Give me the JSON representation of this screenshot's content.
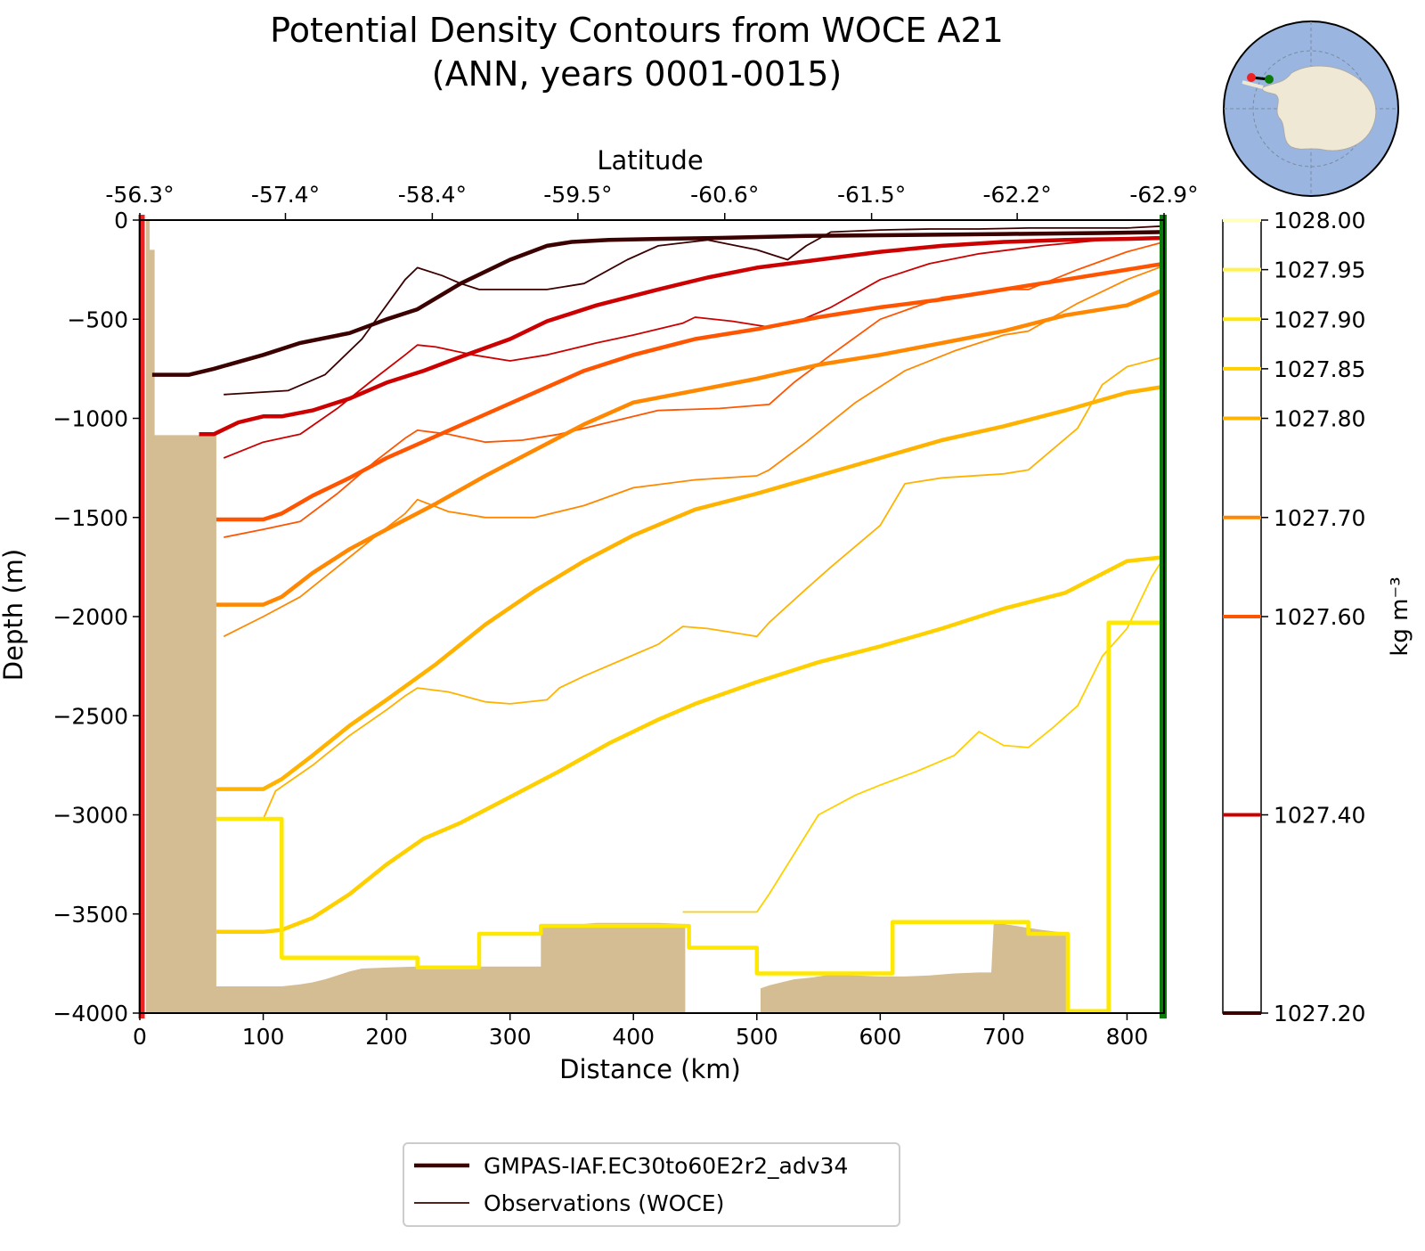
{
  "chart_data": {
    "type": "line",
    "title_line1": "Potential Density Contours from WOCE A21",
    "title_line2": "(ANN, years 0001-0015)",
    "xlabel": "Distance (km)",
    "ylabel": "Depth (m)",
    "top_axis_label": "Latitude",
    "xlim": [
      0,
      830
    ],
    "ylim": [
      -4000,
      0
    ],
    "x_ticks": [
      0,
      100,
      200,
      300,
      400,
      500,
      600,
      700,
      800
    ],
    "y_ticks": [
      0,
      -500,
      -1000,
      -1500,
      -2000,
      -2500,
      -3000,
      -3500,
      -4000
    ],
    "x_tick_labels": [
      "0",
      "100",
      "200",
      "300",
      "400",
      "500",
      "600",
      "700",
      "800"
    ],
    "y_tick_labels": [
      "0",
      "−500",
      "−1000",
      "−1500",
      "−2000",
      "−2500",
      "−3000",
      "−3500",
      "−4000"
    ],
    "top_ticks": [
      0,
      118,
      237,
      355,
      474,
      593,
      711,
      830
    ],
    "top_tick_labels": [
      "-56.3°",
      "-57.4°",
      "-58.4°",
      "-59.5°",
      "-60.6°",
      "-61.5°",
      "-62.2°",
      "-62.9°"
    ],
    "grid": false,
    "legend_position": "bottom-center",
    "legend": [
      {
        "label": "GMPAS-IAF.EC30to60E2r2_adv34",
        "style": "thick"
      },
      {
        "label": "Observations (WOCE)",
        "style": "thin"
      }
    ],
    "colorbar": {
      "label": "kg m⁻³",
      "range": [
        1027.2,
        1028.0
      ],
      "levels": [
        1027.2,
        1027.4,
        1027.6,
        1027.7,
        1027.8,
        1027.85,
        1027.9,
        1027.95,
        1028.0
      ],
      "tick_labels": [
        "1027.20",
        "1027.40",
        "1027.60",
        "1027.70",
        "1027.80",
        "1027.85",
        "1027.90",
        "1027.95",
        "1028.00"
      ],
      "colors": [
        "#3b0000",
        "#cc0000",
        "#ff5500",
        "#ff8800",
        "#ffb300",
        "#ffd000",
        "#ffe800",
        "#fff24d",
        "#ffffc0"
      ]
    },
    "colors": {
      "section_start": "#ee2222",
      "section_end": "#0a7a0a",
      "bathymetry": "#d4bc93"
    },
    "bathymetry": {
      "x": [
        5,
        8,
        8,
        12,
        12,
        62,
        62,
        100,
        115,
        130,
        140,
        150,
        160,
        170,
        180,
        200,
        225,
        240,
        260,
        300,
        325,
        325,
        360,
        370,
        420,
        440,
        442
      ],
      "depth": [
        0,
        0,
        -150,
        -150,
        -1085,
        -1085,
        -3865,
        -3865,
        -3865,
        -3855,
        -3845,
        -3830,
        -3810,
        -3790,
        -3775,
        -3770,
        -3765,
        -3765,
        -3765,
        -3765,
        -3765,
        -3550,
        -3550,
        -3545,
        -3545,
        -3550,
        -3550
      ]
    },
    "bathymetry2": {
      "x": [
        503,
        510,
        520,
        530,
        545,
        560,
        580,
        600,
        620,
        640,
        660,
        680,
        690,
        692,
        700,
        710,
        720,
        730,
        750,
        752
      ],
      "depth": [
        -3875,
        -3860,
        -3845,
        -3830,
        -3820,
        -3805,
        -3810,
        -3815,
        -3815,
        -3810,
        -3800,
        -3795,
        -3795,
        -3540,
        -3550,
        -3560,
        -3570,
        -3580,
        -3595,
        -3595
      ]
    },
    "series": [
      {
        "name": "",
        "level": 1027.2,
        "source": "model",
        "x": [
          10,
          40,
          60,
          100,
          130,
          170,
          200,
          225,
          260,
          300,
          330,
          350,
          380,
          420,
          470,
          540,
          620,
          700,
          780,
          830
        ],
        "y": [
          -780,
          -780,
          -750,
          -680,
          -620,
          -570,
          -500,
          -450,
          -320,
          -200,
          -130,
          -110,
          -100,
          -95,
          -90,
          -80,
          -75,
          -70,
          -65,
          -60
        ]
      },
      {
        "name": "",
        "level": 1027.2,
        "source": "observations",
        "x": [
          68,
          120,
          150,
          180,
          215,
          225,
          245,
          260,
          275,
          300,
          330,
          360,
          395,
          420,
          460,
          500,
          525,
          540,
          560,
          600,
          640,
          680,
          720,
          760,
          800,
          830
        ],
        "y": [
          -880,
          -860,
          -780,
          -600,
          -300,
          -240,
          -280,
          -320,
          -350,
          -350,
          -350,
          -320,
          -200,
          -130,
          -100,
          -150,
          -200,
          -130,
          -60,
          -50,
          -45,
          -45,
          -40,
          -40,
          -40,
          -30
        ]
      },
      {
        "name": "",
        "level": 1027.4,
        "source": "model",
        "x": [
          48,
          60,
          80,
          100,
          115,
          140,
          170,
          200,
          230,
          260,
          300,
          330,
          370,
          420,
          460,
          500,
          550,
          600,
          650,
          700,
          750,
          800,
          830
        ],
        "y": [
          -1080,
          -1080,
          -1020,
          -990,
          -990,
          -960,
          -900,
          -820,
          -760,
          -690,
          -600,
          -510,
          -430,
          -350,
          -290,
          -240,
          -200,
          -160,
          -130,
          -110,
          -100,
          -95,
          -90
        ]
      },
      {
        "name": "",
        "level": 1027.4,
        "source": "observations",
        "x": [
          68,
          100,
          130,
          160,
          190,
          215,
          225,
          240,
          270,
          300,
          330,
          370,
          400,
          440,
          450,
          480,
          510,
          530,
          560,
          600,
          640,
          680,
          730,
          780,
          830
        ],
        "y": [
          -1200,
          -1120,
          -1080,
          -950,
          -800,
          -680,
          -630,
          -640,
          -680,
          -710,
          -680,
          -620,
          -580,
          -520,
          -490,
          -510,
          -540,
          -520,
          -440,
          -300,
          -220,
          -170,
          -130,
          -100,
          -90
        ]
      },
      {
        "name": "",
        "level": 1027.6,
        "source": "model",
        "x": [
          62,
          100,
          115,
          140,
          170,
          200,
          240,
          280,
          320,
          360,
          400,
          450,
          500,
          550,
          600,
          650,
          700,
          750,
          800,
          830
        ],
        "y": [
          -1510,
          -1510,
          -1480,
          -1390,
          -1300,
          -1200,
          -1090,
          -980,
          -870,
          -760,
          -680,
          -600,
          -550,
          -490,
          -440,
          -400,
          -350,
          -300,
          -250,
          -220
        ]
      },
      {
        "name": "",
        "level": 1027.6,
        "source": "observations",
        "x": [
          68,
          100,
          130,
          160,
          190,
          215,
          225,
          250,
          280,
          310,
          340,
          380,
          420,
          470,
          510,
          530,
          560,
          600,
          650,
          700,
          720,
          760,
          800,
          830
        ],
        "y": [
          -1600,
          -1560,
          -1520,
          -1380,
          -1220,
          -1100,
          -1060,
          -1080,
          -1120,
          -1110,
          -1080,
          -1020,
          -960,
          -950,
          -930,
          -820,
          -680,
          -500,
          -390,
          -350,
          -350,
          -250,
          -160,
          -110
        ]
      },
      {
        "name": "",
        "level": 1027.7,
        "source": "model",
        "x": [
          62,
          100,
          115,
          140,
          170,
          200,
          240,
          280,
          320,
          360,
          400,
          450,
          500,
          550,
          600,
          650,
          700,
          750,
          800,
          830
        ],
        "y": [
          -1940,
          -1940,
          -1900,
          -1780,
          -1660,
          -1560,
          -1430,
          -1290,
          -1160,
          -1030,
          -920,
          -860,
          -800,
          -730,
          -680,
          -620,
          -560,
          -480,
          -430,
          -350
        ]
      },
      {
        "name": "",
        "level": 1027.7,
        "source": "observations",
        "x": [
          68,
          100,
          130,
          160,
          190,
          215,
          225,
          250,
          280,
          320,
          360,
          400,
          450,
          500,
          510,
          540,
          580,
          620,
          660,
          700,
          720,
          760,
          800,
          830
        ],
        "y": [
          -2100,
          -2000,
          -1900,
          -1750,
          -1600,
          -1480,
          -1410,
          -1470,
          -1500,
          -1500,
          -1440,
          -1350,
          -1310,
          -1290,
          -1260,
          -1120,
          -920,
          -760,
          -660,
          -580,
          -560,
          -420,
          -300,
          -230
        ]
      },
      {
        "name": "",
        "level": 1027.8,
        "source": "model",
        "x": [
          62,
          100,
          115,
          140,
          170,
          200,
          240,
          280,
          320,
          360,
          400,
          450,
          500,
          550,
          600,
          650,
          700,
          750,
          800,
          830
        ],
        "y": [
          -2870,
          -2870,
          -2820,
          -2700,
          -2550,
          -2420,
          -2240,
          -2040,
          -1870,
          -1720,
          -1590,
          -1460,
          -1380,
          -1290,
          -1200,
          -1110,
          -1040,
          -960,
          -870,
          -840
        ]
      },
      {
        "name": "",
        "level": 1027.8,
        "source": "observations",
        "x": [
          100,
          110,
          140,
          170,
          200,
          215,
          225,
          250,
          280,
          300,
          330,
          340,
          360,
          390,
          420,
          440,
          460,
          490,
          500,
          510,
          540,
          560,
          600,
          620,
          650,
          700,
          720,
          760,
          780,
          800,
          830
        ],
        "y": [
          -3020,
          -2880,
          -2750,
          -2600,
          -2470,
          -2400,
          -2360,
          -2380,
          -2430,
          -2440,
          -2420,
          -2360,
          -2300,
          -2220,
          -2140,
          -2050,
          -2060,
          -2090,
          -2100,
          -2030,
          -1860,
          -1750,
          -1540,
          -1330,
          -1300,
          -1280,
          -1260,
          -1050,
          -830,
          -740,
          -690
        ]
      },
      {
        "name": "",
        "level": 1027.85,
        "source": "model",
        "x": [
          62,
          100,
          115,
          140,
          170,
          200,
          230,
          260,
          300,
          340,
          380,
          420,
          450,
          500,
          550,
          600,
          650,
          700,
          750,
          800,
          830
        ],
        "y": [
          -3590,
          -3590,
          -3580,
          -3520,
          -3400,
          -3250,
          -3120,
          -3040,
          -2910,
          -2780,
          -2640,
          -2520,
          -2440,
          -2330,
          -2230,
          -2150,
          -2060,
          -1960,
          -1880,
          -1720,
          -1700
        ]
      },
      {
        "name": "",
        "level": 1027.85,
        "source": "observations",
        "x": [
          440,
          460,
          500,
          510,
          530,
          550,
          580,
          600,
          630,
          660,
          680,
          700,
          720,
          740,
          760,
          780,
          800,
          820,
          830
        ],
        "y": [
          -3490,
          -3490,
          -3490,
          -3400,
          -3200,
          -3000,
          -2900,
          -2850,
          -2780,
          -2700,
          -2580,
          -2650,
          -2660,
          -2560,
          -2450,
          -2200,
          -2060,
          -1800,
          -1700
        ]
      },
      {
        "name": "",
        "level": 1027.9,
        "source": "model",
        "x": [
          62,
          115,
          115,
          225,
          225,
          275,
          275,
          325,
          325,
          440,
          445,
          445,
          500,
          500,
          600,
          610,
          610,
          720,
          720,
          750,
          752,
          752,
          785,
          785,
          830
        ],
        "y": [
          -3020,
          -3020,
          -3720,
          -3720,
          -3770,
          -3770,
          -3600,
          -3600,
          -3560,
          -3560,
          -3560,
          -3670,
          -3670,
          -3800,
          -3800,
          -3800,
          -3540,
          -3540,
          -3600,
          -3600,
          -3600,
          -3990,
          -3990,
          -2030,
          -2030
        ]
      }
    ]
  }
}
